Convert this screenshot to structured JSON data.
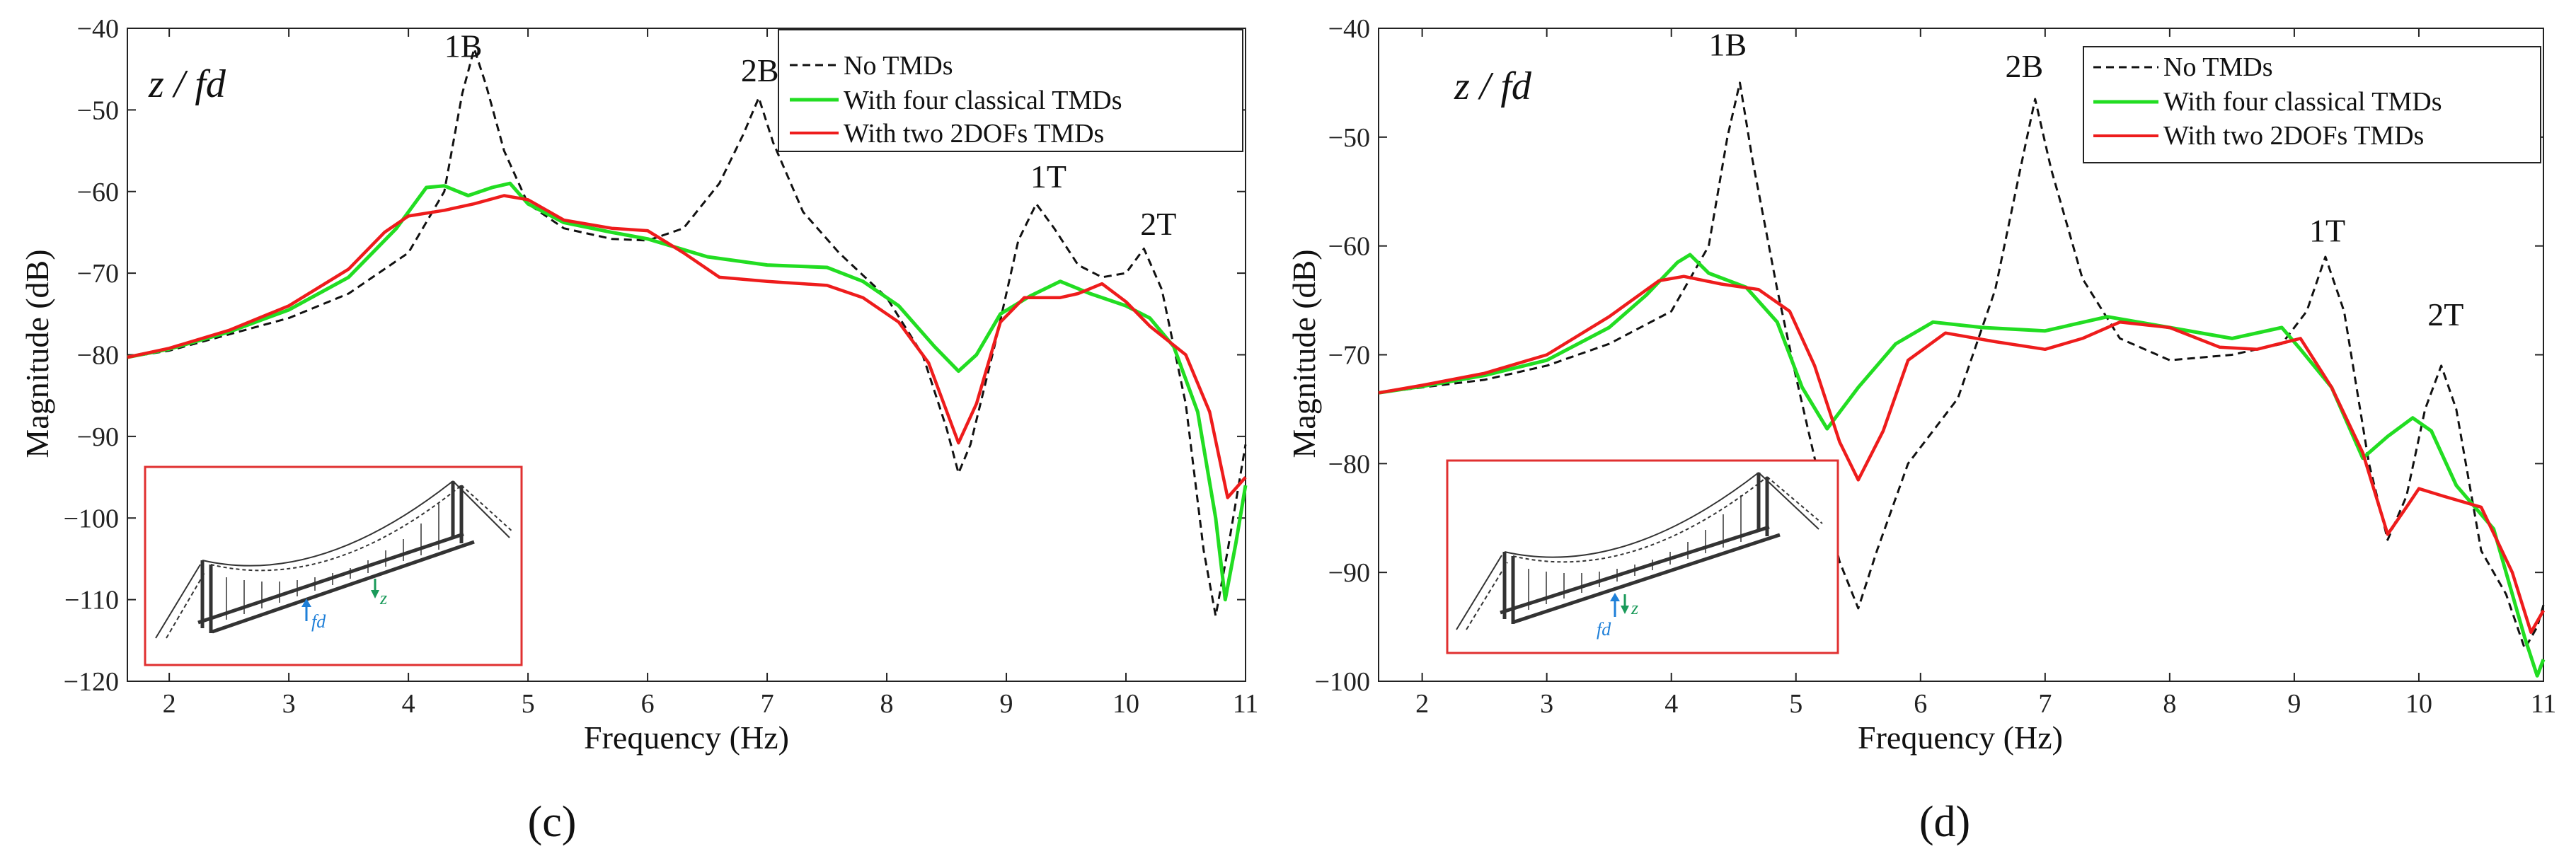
{
  "colors": {
    "no_tmds": "#111111",
    "classical": "#22dd22",
    "twodof": "#ee1c1c",
    "inset_border": "#e03030",
    "inset_fd": "#1e7fd8",
    "inset_z": "#1a9a5a"
  },
  "chart_data": [
    {
      "type": "line",
      "panel_label": "(c)",
      "title": "z / fd",
      "xlabel": "Frequency  (Hz)",
      "ylabel": "Magnitude (dB)",
      "xlim": [
        1.65,
        11.0
      ],
      "ylim": [
        -120,
        -40
      ],
      "xticks": [
        2,
        3,
        4,
        5,
        6,
        7,
        8,
        9,
        10,
        11
      ],
      "yticks": [
        -120,
        -110,
        -100,
        -90,
        -80,
        -70,
        -60,
        -50,
        -40
      ],
      "legend": {
        "position": "top-right"
      },
      "annotations": [
        {
          "text": "1B",
          "x": 4.3,
          "y": -43.5
        },
        {
          "text": "2B",
          "x": 6.78,
          "y": -46.5
        },
        {
          "text": "1T",
          "x": 9.2,
          "y": -59.5
        },
        {
          "text": "2T",
          "x": 10.12,
          "y": -65.3
        }
      ],
      "series": [
        {
          "name": "No TMDs",
          "style": "dashed",
          "color_key": "no_tmds",
          "points": [
            [
              1.65,
              -80.3
            ],
            [
              2,
              -79.5
            ],
            [
              2.5,
              -77.5
            ],
            [
              3,
              -75.5
            ],
            [
              3.5,
              -72.5
            ],
            [
              4,
              -67.5
            ],
            [
              4.3,
              -60
            ],
            [
              4.45,
              -48
            ],
            [
              4.55,
              -42.5
            ],
            [
              4.65,
              -47
            ],
            [
              4.8,
              -55
            ],
            [
              5,
              -61.5
            ],
            [
              5.3,
              -64.5
            ],
            [
              5.7,
              -65.8
            ],
            [
              6,
              -66
            ],
            [
              6.3,
              -64.5
            ],
            [
              6.6,
              -59
            ],
            [
              6.8,
              -53
            ],
            [
              6.93,
              -48.5
            ],
            [
              7.05,
              -54
            ],
            [
              7.3,
              -62.5
            ],
            [
              7.6,
              -67.5
            ],
            [
              8,
              -73
            ],
            [
              8.3,
              -80
            ],
            [
              8.5,
              -89
            ],
            [
              8.6,
              -94.5
            ],
            [
              8.7,
              -91
            ],
            [
              8.9,
              -79
            ],
            [
              9.1,
              -66
            ],
            [
              9.25,
              -61.5
            ],
            [
              9.4,
              -64.5
            ],
            [
              9.6,
              -69
            ],
            [
              9.8,
              -70.5
            ],
            [
              10,
              -70
            ],
            [
              10.15,
              -67
            ],
            [
              10.3,
              -72
            ],
            [
              10.5,
              -86
            ],
            [
              10.65,
              -104
            ],
            [
              10.75,
              -112
            ],
            [
              10.85,
              -104
            ],
            [
              11,
              -91
            ]
          ]
        },
        {
          "name": "With four classical TMDs",
          "style": "solid",
          "color_key": "classical",
          "points": [
            [
              1.65,
              -80.3
            ],
            [
              2,
              -79.3
            ],
            [
              2.5,
              -77.2
            ],
            [
              3,
              -74.5
            ],
            [
              3.5,
              -70.5
            ],
            [
              3.9,
              -64.5
            ],
            [
              4.15,
              -59.5
            ],
            [
              4.3,
              -59.3
            ],
            [
              4.5,
              -60.5
            ],
            [
              4.7,
              -59.5
            ],
            [
              4.85,
              -59
            ],
            [
              5,
              -61.5
            ],
            [
              5.3,
              -63.8
            ],
            [
              5.7,
              -65
            ],
            [
              6,
              -65.8
            ],
            [
              6.5,
              -68
            ],
            [
              7,
              -69
            ],
            [
              7.5,
              -69.3
            ],
            [
              7.8,
              -71
            ],
            [
              8.1,
              -74
            ],
            [
              8.4,
              -79
            ],
            [
              8.6,
              -82
            ],
            [
              8.75,
              -80
            ],
            [
              8.95,
              -75
            ],
            [
              9.2,
              -72.8
            ],
            [
              9.45,
              -71
            ],
            [
              9.7,
              -72.5
            ],
            [
              10,
              -74
            ],
            [
              10.2,
              -75.5
            ],
            [
              10.4,
              -79
            ],
            [
              10.6,
              -87
            ],
            [
              10.75,
              -100
            ],
            [
              10.83,
              -110
            ],
            [
              10.92,
              -103
            ],
            [
              11,
              -96
            ]
          ]
        },
        {
          "name": "With two 2DOFs TMDs",
          "style": "solid",
          "color_key": "twodof",
          "points": [
            [
              1.65,
              -80.3
            ],
            [
              2,
              -79.2
            ],
            [
              2.5,
              -77
            ],
            [
              3,
              -74
            ],
            [
              3.5,
              -69.5
            ],
            [
              3.8,
              -65
            ],
            [
              4,
              -63
            ],
            [
              4.3,
              -62.3
            ],
            [
              4.55,
              -61.5
            ],
            [
              4.8,
              -60.5
            ],
            [
              5,
              -61
            ],
            [
              5.3,
              -63.5
            ],
            [
              5.7,
              -64.5
            ],
            [
              6,
              -64.8
            ],
            [
              6.3,
              -67.5
            ],
            [
              6.6,
              -70.5
            ],
            [
              7,
              -71
            ],
            [
              7.5,
              -71.5
            ],
            [
              7.8,
              -73
            ],
            [
              8.1,
              -76
            ],
            [
              8.35,
              -81
            ],
            [
              8.6,
              -90.8
            ],
            [
              8.75,
              -86
            ],
            [
              8.95,
              -76
            ],
            [
              9.15,
              -73
            ],
            [
              9.45,
              -73
            ],
            [
              9.6,
              -72.5
            ],
            [
              9.8,
              -71.3
            ],
            [
              10,
              -73.5
            ],
            [
              10.2,
              -76.5
            ],
            [
              10.5,
              -80
            ],
            [
              10.7,
              -87
            ],
            [
              10.85,
              -97.5
            ],
            [
              11,
              -95
            ]
          ]
        }
      ]
    },
    {
      "type": "line",
      "panel_label": "(d)",
      "title": "z / fd",
      "xlabel": "Frequency  (Hz)",
      "ylabel": "Magnitude (dB)",
      "xlim": [
        1.65,
        11.0
      ],
      "ylim": [
        -100,
        -40
      ],
      "xticks": [
        2,
        3,
        4,
        5,
        6,
        7,
        8,
        9,
        10,
        11
      ],
      "yticks": [
        -100,
        -90,
        -80,
        -70,
        -60,
        -50,
        -40
      ],
      "legend": {
        "position": "top-right"
      },
      "annotations": [
        {
          "text": "1B",
          "x": 4.3,
          "y": -42.5
        },
        {
          "text": "2B",
          "x": 6.68,
          "y": -44.5
        },
        {
          "text": "1T",
          "x": 9.12,
          "y": -59.6
        },
        {
          "text": "2T",
          "x": 10.07,
          "y": -67.3
        }
      ],
      "series": [
        {
          "name": "No TMDs",
          "style": "dashed",
          "color_key": "no_tmds",
          "points": [
            [
              1.65,
              -73.5
            ],
            [
              2,
              -73
            ],
            [
              2.5,
              -72.3
            ],
            [
              3,
              -71
            ],
            [
              3.5,
              -69
            ],
            [
              4,
              -66
            ],
            [
              4.3,
              -60
            ],
            [
              4.45,
              -50
            ],
            [
              4.55,
              -45
            ],
            [
              4.65,
              -52
            ],
            [
              4.85,
              -64
            ],
            [
              5,
              -72
            ],
            [
              5.2,
              -82
            ],
            [
              5.35,
              -89
            ],
            [
              5.5,
              -93.3
            ],
            [
              5.65,
              -88
            ],
            [
              5.9,
              -80
            ],
            [
              6.3,
              -74
            ],
            [
              6.6,
              -64
            ],
            [
              6.8,
              -53
            ],
            [
              6.92,
              -46.5
            ],
            [
              7.05,
              -53
            ],
            [
              7.3,
              -63
            ],
            [
              7.6,
              -68.5
            ],
            [
              8,
              -70.5
            ],
            [
              8.5,
              -70
            ],
            [
              8.9,
              -69
            ],
            [
              9.1,
              -66
            ],
            [
              9.25,
              -61
            ],
            [
              9.4,
              -66
            ],
            [
              9.6,
              -80
            ],
            [
              9.75,
              -87
            ],
            [
              9.9,
              -83
            ],
            [
              10.05,
              -75
            ],
            [
              10.18,
              -71
            ],
            [
              10.3,
              -75
            ],
            [
              10.5,
              -88
            ],
            [
              10.7,
              -92
            ],
            [
              10.85,
              -97
            ],
            [
              10.95,
              -95
            ],
            [
              11,
              -93
            ]
          ]
        },
        {
          "name": "With four classical TMDs",
          "style": "solid",
          "color_key": "classical",
          "points": [
            [
              1.65,
              -73.5
            ],
            [
              2,
              -72.9
            ],
            [
              2.5,
              -71.9
            ],
            [
              3,
              -70.5
            ],
            [
              3.5,
              -67.5
            ],
            [
              3.8,
              -64.5
            ],
            [
              4.05,
              -61.5
            ],
            [
              4.15,
              -60.8
            ],
            [
              4.3,
              -62.5
            ],
            [
              4.6,
              -63.8
            ],
            [
              4.85,
              -67
            ],
            [
              5.05,
              -73
            ],
            [
              5.25,
              -76.8
            ],
            [
              5.5,
              -73
            ],
            [
              5.8,
              -69
            ],
            [
              6.1,
              -67
            ],
            [
              6.5,
              -67.5
            ],
            [
              7,
              -67.8
            ],
            [
              7.5,
              -66.5
            ],
            [
              8,
              -67.5
            ],
            [
              8.5,
              -68.5
            ],
            [
              8.9,
              -67.5
            ],
            [
              9.05,
              -69.5
            ],
            [
              9.3,
              -73
            ],
            [
              9.55,
              -79.5
            ],
            [
              9.75,
              -77.5
            ],
            [
              9.95,
              -75.8
            ],
            [
              10.1,
              -77
            ],
            [
              10.3,
              -82
            ],
            [
              10.6,
              -86
            ],
            [
              10.85,
              -96
            ],
            [
              10.95,
              -99.5
            ],
            [
              11,
              -98
            ]
          ]
        },
        {
          "name": "With two 2DOFs TMDs",
          "style": "solid",
          "color_key": "twodof",
          "points": [
            [
              1.65,
              -73.5
            ],
            [
              2,
              -72.8
            ],
            [
              2.5,
              -71.7
            ],
            [
              3,
              -70
            ],
            [
              3.5,
              -66.5
            ],
            [
              3.9,
              -63.2
            ],
            [
              4.1,
              -62.8
            ],
            [
              4.4,
              -63.5
            ],
            [
              4.7,
              -64
            ],
            [
              4.95,
              -66
            ],
            [
              5.15,
              -71
            ],
            [
              5.35,
              -78
            ],
            [
              5.5,
              -81.5
            ],
            [
              5.7,
              -77
            ],
            [
              5.9,
              -70.5
            ],
            [
              6.2,
              -68
            ],
            [
              6.6,
              -68.8
            ],
            [
              7,
              -69.5
            ],
            [
              7.3,
              -68.5
            ],
            [
              7.6,
              -67
            ],
            [
              8,
              -67.5
            ],
            [
              8.4,
              -69.3
            ],
            [
              8.7,
              -69.5
            ],
            [
              9.05,
              -68.5
            ],
            [
              9.3,
              -73
            ],
            [
              9.55,
              -79
            ],
            [
              9.75,
              -86.5
            ],
            [
              9.9,
              -84
            ],
            [
              10,
              -82.3
            ],
            [
              10.2,
              -83
            ],
            [
              10.5,
              -84
            ],
            [
              10.75,
              -90
            ],
            [
              10.9,
              -95.5
            ],
            [
              11,
              -93.5
            ]
          ]
        }
      ]
    }
  ],
  "insets": [
    {
      "fd_label": "fd",
      "z_label": "z"
    },
    {
      "fd_label": "fd",
      "z_label": "z"
    }
  ]
}
